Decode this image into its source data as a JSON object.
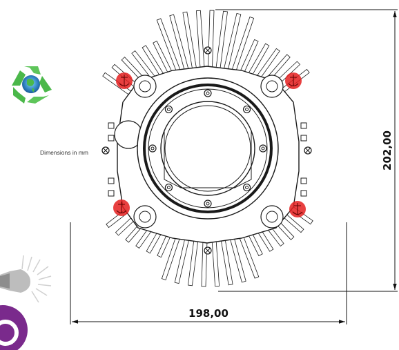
{
  "note": "Dimensions in mm",
  "dimensions": {
    "width_label": "198,00",
    "height_label": "202,00"
  },
  "icons": {
    "recycle": "recycle-globe-icon",
    "lamp": "led-lamp-icon",
    "badge": "purple-badge-icon"
  },
  "colors": {
    "line": "#1a1a1a",
    "mount_marker": "#e41e1e",
    "recycle_green": "#4bb84a",
    "badge_purple": "#7a2a8c",
    "lamp_grey": "#8d8d8d"
  }
}
